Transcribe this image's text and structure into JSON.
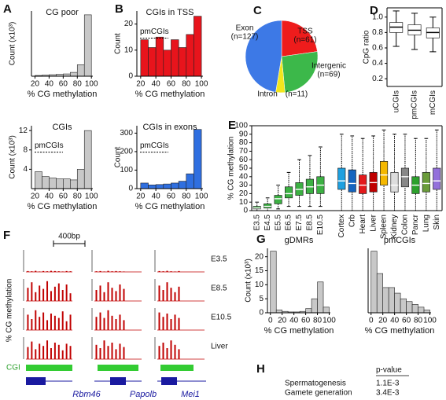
{
  "panels": [
    "A",
    "B",
    "C",
    "D",
    "E",
    "F",
    "G",
    "H"
  ],
  "chart_data": [
    {
      "type": "histogram",
      "title": "CG poor",
      "x_label": "% CG methylation",
      "y_label": "Count (x10³)",
      "bins": [
        20,
        30,
        40,
        50,
        60,
        70,
        80,
        90,
        100
      ],
      "values": [
        1,
        1.5,
        2,
        2.5,
        3,
        5,
        15,
        80
      ],
      "color": "#c8c8c8",
      "xlim": [
        15,
        102
      ],
      "xticks": [
        20,
        40,
        60,
        80,
        100
      ],
      "ylim": [
        0,
        85
      ]
    },
    {
      "type": "histogram",
      "title": "CGIs in TSS",
      "x_label": "% CG methylation",
      "y_label": "Count",
      "annotation": "pmCGIs",
      "bins": [
        20,
        30,
        40,
        50,
        60,
        70,
        80,
        90,
        100
      ],
      "values": [
        14,
        11,
        15,
        10,
        14,
        11,
        16,
        23
      ],
      "color": "#e8141c",
      "xlim": [
        15,
        102
      ],
      "xticks": [
        20,
        40,
        60,
        80,
        100
      ],
      "ylim": [
        0,
        25
      ],
      "yticks": [
        0,
        10,
        20
      ]
    },
    {
      "type": "histogram",
      "title": "CGIs",
      "x_label": "% CG methylation",
      "y_label": "Count (x10³)",
      "annotation": "pmCGIs",
      "bins": [
        20,
        30,
        40,
        50,
        60,
        70,
        80,
        90,
        100
      ],
      "values": [
        3.5,
        2.5,
        2.2,
        2,
        2,
        1.8,
        4,
        12
      ],
      "color": "#c8c8c8",
      "xlim": [
        15,
        102
      ],
      "xticks": [
        20,
        40,
        60,
        80,
        100
      ],
      "ylim": [
        0,
        13
      ],
      "yticks": [
        4,
        8,
        12
      ]
    },
    {
      "type": "histogram",
      "title": "CGIs in exons",
      "x_label": "% CG methylation",
      "y_label": "Count",
      "annotation": "pmCGIs",
      "bins": [
        20,
        30,
        40,
        50,
        60,
        70,
        80,
        90,
        100
      ],
      "values": [
        30,
        20,
        22,
        25,
        30,
        40,
        80,
        320
      ],
      "color": "#2f6fe0",
      "xlim": [
        15,
        102
      ],
      "xticks": [
        20,
        40,
        60,
        80,
        100
      ],
      "ylim": [
        0,
        340
      ],
      "yticks": [
        0,
        100,
        200,
        300
      ]
    },
    {
      "type": "pie",
      "categories": [
        "TSS",
        "Intergenic",
        "Intron",
        "Exon"
      ],
      "values": [
        61,
        69,
        11,
        127
      ],
      "value_labels": [
        "(n=61)",
        "(n=69)",
        "(n=11)",
        "(n=127)"
      ],
      "colors": [
        "#ee1c1c",
        "#3cb84a",
        "#f2e61c",
        "#3d79e6"
      ]
    },
    {
      "type": "box",
      "y_label": "CpG ratio",
      "categories": [
        "uCGIs",
        "pmCGIs",
        "mCGIs"
      ],
      "stats": [
        [
          0.62,
          0.8,
          0.87,
          0.93,
          1.08
        ],
        [
          0.58,
          0.77,
          0.83,
          0.9,
          1.05
        ],
        [
          0.55,
          0.73,
          0.8,
          0.86,
          1.0
        ]
      ],
      "colors": [
        "#ffffff",
        "#ffffff",
        "#ffffff"
      ],
      "ylim": [
        0.1,
        1.12
      ],
      "yticks": [
        0.2,
        0.4,
        0.6,
        0.8,
        {
          "value": 1,
          "label": "1.0"
        }
      ]
    },
    {
      "type": "box",
      "y_label": "% CG methylation",
      "categories": [
        "E3.5",
        "E4.5",
        "E5.5",
        "E6.5",
        "E7.5",
        "E8.5",
        "E10.5",
        "Cortex",
        "Crb",
        "Heart",
        "Liver",
        "Spleen",
        "Kidney",
        "Colon",
        "Pancr",
        "Lung",
        "Skin"
      ],
      "stats": [
        [
          0,
          2,
          3,
          5,
          10
        ],
        [
          0,
          3,
          5,
          8,
          15
        ],
        [
          2,
          8,
          14,
          18,
          30
        ],
        [
          5,
          15,
          20,
          28,
          45
        ],
        [
          5,
          18,
          25,
          33,
          60
        ],
        [
          5,
          20,
          28,
          37,
          65
        ],
        [
          5,
          20,
          30,
          40,
          75
        ],
        [
          0,
          25,
          35,
          50,
          90
        ],
        [
          0,
          22,
          32,
          48,
          88
        ],
        [
          0,
          20,
          30,
          42,
          85
        ],
        [
          0,
          22,
          33,
          45,
          88
        ],
        [
          0,
          30,
          42,
          58,
          95
        ],
        [
          0,
          22,
          30,
          45,
          90
        ],
        [
          0,
          28,
          40,
          50,
          90
        ],
        [
          0,
          20,
          30,
          40,
          85
        ],
        [
          0,
          22,
          32,
          45,
          85
        ],
        [
          0,
          25,
          35,
          50,
          95
        ]
      ],
      "colors": [
        "#3cb043",
        "#3cb043",
        "#3cb043",
        "#3cb043",
        "#3cb043",
        "#3cb043",
        "#3cb043",
        "#1ea0e0",
        "#1565c0",
        "#e31a1c",
        "#c00000",
        "#f5b800",
        "#dddddd",
        "#888888",
        "#2ca02c",
        "#6a9c3a",
        "#9370db"
      ],
      "ylim": [
        0,
        100
      ],
      "yticks": [
        0,
        10,
        20,
        30,
        40,
        50,
        60,
        70,
        80,
        90,
        100
      ]
    },
    {
      "type": "histogram",
      "title": "gDMRs",
      "title_above": true,
      "x_label": "% CG methylation",
      "y_label": "Count (x10³)",
      "bins": [
        0,
        10,
        20,
        30,
        40,
        50,
        60,
        70,
        80,
        90,
        100
      ],
      "values": [
        22,
        1,
        0.5,
        0.3,
        0.3,
        0.5,
        1.5,
        5,
        11,
        2
      ],
      "color": "#c8c8c8",
      "xlim": [
        -5,
        102
      ],
      "xticks": [
        0,
        20,
        40,
        60,
        80,
        100
      ],
      "ylim": [
        0,
        23
      ],
      "yticks": [
        0,
        5,
        10,
        15,
        20
      ]
    },
    {
      "type": "histogram",
      "title": "pmCGIs",
      "title_above": true,
      "x_label": "% CG methylation",
      "bins": [
        0,
        10,
        20,
        30,
        40,
        50,
        60,
        70,
        80,
        90,
        100
      ],
      "values": [
        22,
        14,
        9,
        9,
        7,
        5,
        4,
        3,
        2,
        1
      ],
      "color": "#c8c8c8",
      "xlim": [
        -5,
        102
      ],
      "xticks": [
        0,
        20,
        40,
        60,
        80,
        100
      ],
      "ylim": [
        0,
        23
      ]
    }
  ],
  "genome_tracks": {
    "y_label": "% CG methylation",
    "scale_label": "400bp",
    "cgi_label": "CGI",
    "genes": [
      "Rbm46",
      "Papolb",
      "Mei1"
    ],
    "ylim": [
      0,
      100
    ],
    "color": "#c00000",
    "rows": [
      {
        "name": "E3.5",
        "columns": [
          [
            4,
            3,
            5,
            2,
            4,
            3,
            5,
            4,
            3,
            2,
            4,
            3
          ],
          [
            3,
            4,
            2,
            5,
            3,
            4,
            3,
            2
          ],
          [
            4,
            3,
            5,
            3,
            2,
            4
          ]
        ]
      },
      {
        "name": "E8.5",
        "columns": [
          [
            60,
            85,
            40,
            70,
            55,
            90,
            45,
            65,
            80,
            50,
            75,
            35
          ],
          [
            50,
            70,
            40,
            85,
            60,
            45,
            75,
            55
          ],
          [
            70,
            50,
            85,
            60,
            40,
            65
          ]
        ]
      },
      {
        "name": "E10.5",
        "columns": [
          [
            70,
            50,
            90,
            60,
            80,
            45,
            75,
            65,
            55,
            85,
            40,
            70
          ],
          [
            60,
            80,
            55,
            90,
            65,
            50,
            70,
            45
          ],
          [
            80,
            60,
            75,
            50,
            70,
            55
          ]
        ]
      },
      {
        "name": "Liver",
        "columns": [
          [
            55,
            80,
            45,
            70,
            60,
            85,
            50,
            75,
            65,
            40,
            70,
            60
          ],
          [
            65,
            50,
            85,
            60,
            75,
            45,
            70,
            55
          ],
          [
            60,
            75,
            50,
            85,
            65,
            45
          ]
        ]
      }
    ]
  },
  "table": {
    "header": "p-value",
    "rows": [
      [
        "Spermatogenesis",
        "1.1E-3"
      ],
      [
        "Gamete generation",
        "3.4E-3"
      ]
    ]
  }
}
